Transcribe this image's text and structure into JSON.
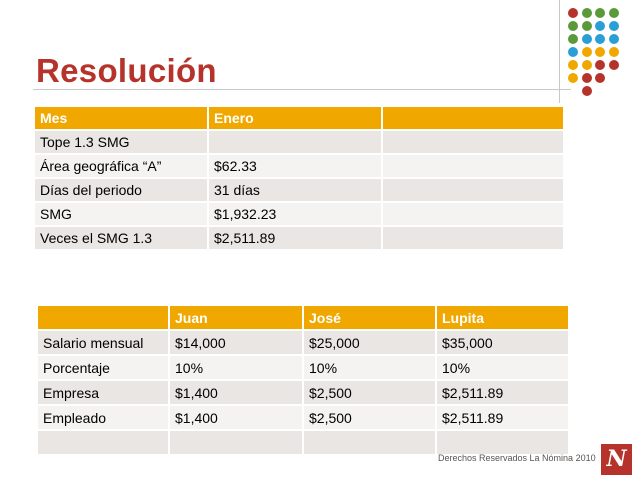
{
  "title": "Resolución",
  "table1": {
    "header": [
      "Mes",
      "Enero",
      ""
    ],
    "rows": [
      [
        "Tope 1.3 SMG",
        "",
        ""
      ],
      [
        "Área geográfica “A”",
        "$62.33",
        ""
      ],
      [
        "Días del periodo",
        "31 días",
        ""
      ],
      [
        "SMG",
        "$1,932.23",
        ""
      ],
      [
        "Veces el SMG 1.3",
        "$2,511.89",
        ""
      ]
    ]
  },
  "table2": {
    "header": [
      "",
      "Juan",
      "José",
      "Lupita"
    ],
    "rows": [
      [
        "Salario mensual",
        "$14,000",
        "$25,000",
        "$35,000"
      ],
      [
        "Porcentaje",
        "10%",
        "10%",
        "10%"
      ],
      [
        "Empresa",
        "$1,400",
        "$2,500",
        "$2,511.89"
      ],
      [
        "Empleado",
        "$1,400",
        "$2,500",
        "$2,511.89"
      ],
      [
        "",
        "",
        "",
        ""
      ]
    ]
  },
  "footer": "Derechos Reservados La Nómina 2010",
  "logo_letter": "N",
  "colors": {
    "title": "#b5332a",
    "header_bg": "#f0a800",
    "row_odd": "#e9e6e3",
    "row_even": "#f5f3f1",
    "dot_red": "#b5332a",
    "dot_green": "#5a9a3a",
    "dot_blue": "#2a9fd6",
    "dot_orange": "#f0a800"
  }
}
